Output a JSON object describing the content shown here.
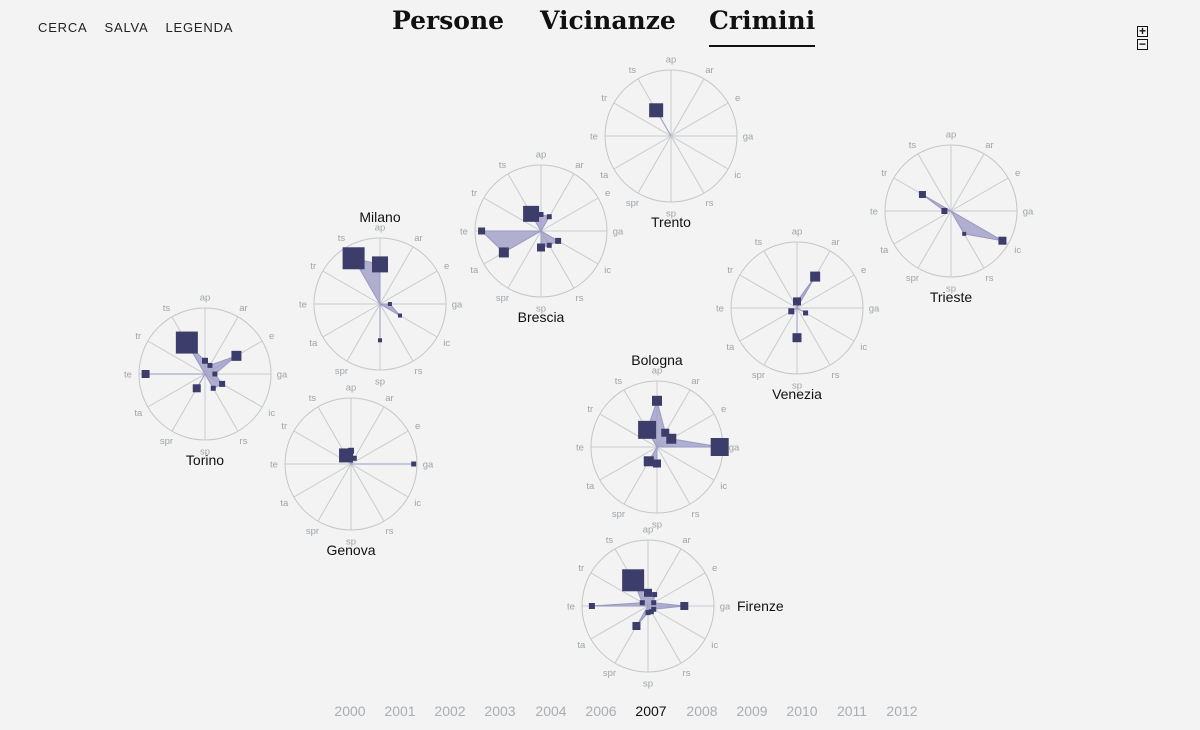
{
  "nav": {
    "items": [
      "CERCA",
      "SALVA",
      "LEGENDA"
    ]
  },
  "tabs": [
    {
      "label": "Persone",
      "active": false
    },
    {
      "label": "Vicinanze",
      "active": false
    },
    {
      "label": "Crimini",
      "active": true
    }
  ],
  "zoom": {
    "plus": "+",
    "minus": "−"
  },
  "years": [
    "2000",
    "2001",
    "2002",
    "2003",
    "2004",
    "2006",
    "2007",
    "2008",
    "2009",
    "2010",
    "2011",
    "2012"
  ],
  "active_year": "2007",
  "chart_data": {
    "type": "radar",
    "axes": [
      "ap",
      "ar",
      "e",
      "ga",
      "ic",
      "rs",
      "sp",
      "spr",
      "ta",
      "te",
      "tr",
      "ts"
    ],
    "axis_max": 1,
    "colors": {
      "fill": "#9a98c4",
      "marker": "#3d3d6b",
      "ring": "#c3c6c9",
      "spoke": "#c8cbce",
      "axis_label": "#a0a4a8"
    },
    "cities": [
      {
        "name": "Milano",
        "label_pos": "top",
        "values": [
          0.6,
          0,
          0,
          0.15,
          0.35,
          0,
          0.55,
          0,
          0,
          0,
          0,
          0.8
        ],
        "markers": [
          16,
          0,
          0,
          4,
          4,
          0,
          4,
          0,
          0,
          0,
          0,
          22
        ]
      },
      {
        "name": "Torino",
        "label_pos": "bottom",
        "values": [
          0.2,
          0.15,
          0.55,
          0.15,
          0.3,
          0.25,
          0,
          0.25,
          0,
          0.9,
          0,
          0.55
        ],
        "markers": [
          6,
          5,
          10,
          5,
          6,
          5,
          0,
          8,
          0,
          8,
          0,
          22
        ]
      },
      {
        "name": "Genova",
        "label_pos": "bottom",
        "values": [
          0.2,
          0.1,
          0,
          0.95,
          0,
          0,
          0,
          0,
          0,
          0,
          0,
          0.15
        ],
        "markers": [
          6,
          5,
          0,
          5,
          0,
          0,
          0,
          0,
          0,
          0,
          0,
          14
        ]
      },
      {
        "name": "Brescia",
        "label_pos": "bottom",
        "values": [
          0.25,
          0.25,
          0,
          0,
          0.3,
          0.25,
          0.25,
          0,
          0.65,
          0.9,
          0,
          0.3
        ],
        "markers": [
          5,
          5,
          0,
          0,
          6,
          5,
          8,
          0,
          10,
          7,
          0,
          16
        ]
      },
      {
        "name": "Trento",
        "label_pos": "bottom",
        "values": [
          0,
          0,
          0,
          0,
          0,
          0,
          0,
          0,
          0,
          0,
          0,
          0.45
        ],
        "markers": [
          0,
          0,
          0,
          0,
          0,
          0,
          0,
          0,
          0,
          0,
          0,
          14
        ]
      },
      {
        "name": "Trieste",
        "label_pos": "bottom",
        "values": [
          0,
          0,
          0,
          0,
          0.9,
          0.4,
          0,
          0,
          0,
          0.1,
          0.5,
          0
        ],
        "markers": [
          0,
          0,
          0,
          0,
          8,
          4,
          0,
          0,
          0,
          6,
          7,
          0
        ]
      },
      {
        "name": "Venezia",
        "label_pos": "bottom",
        "values": [
          0.1,
          0.55,
          0,
          0,
          0.15,
          0,
          0.45,
          0,
          0.1,
          0,
          0,
          0
        ],
        "markers": [
          8,
          10,
          0,
          0,
          5,
          0,
          9,
          0,
          6,
          0,
          0,
          0
        ]
      },
      {
        "name": "Bologna",
        "label_pos": "top",
        "values": [
          0.7,
          0.25,
          0.25,
          0.95,
          0,
          0,
          0.25,
          0.25,
          0,
          0,
          0,
          0.3
        ],
        "markers": [
          10,
          8,
          10,
          18,
          0,
          0,
          8,
          10,
          0,
          0,
          0,
          18
        ]
      },
      {
        "name": "Firenze",
        "label_pos": "right",
        "values": [
          0.2,
          0.2,
          0.1,
          0.55,
          0.1,
          0.1,
          0.1,
          0.35,
          0,
          0.85,
          0.1,
          0.45
        ],
        "markers": [
          8,
          5,
          5,
          8,
          5,
          5,
          5,
          8,
          0,
          6,
          5,
          22
        ]
      }
    ]
  }
}
